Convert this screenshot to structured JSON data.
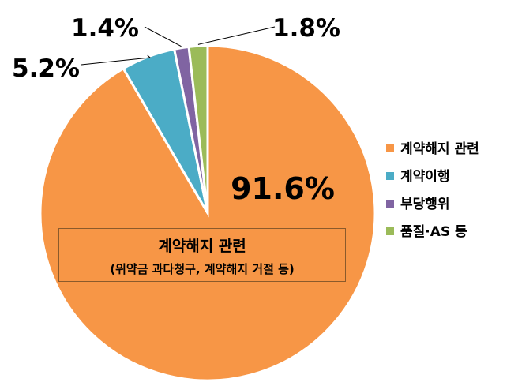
{
  "chart_data": {
    "type": "pie",
    "title": "",
    "categories": [
      "계약해지 관련",
      "계약이행",
      "부당행위",
      "품질·AS 등"
    ],
    "values": [
      91.6,
      5.2,
      1.4,
      1.8
    ],
    "data_labels": [
      "91.6%",
      "5.2%",
      "1.4%",
      "1.8%"
    ],
    "colors": [
      "#f79646",
      "#4bacc6",
      "#8064a2",
      "#9bbb59"
    ],
    "start_angle_deg": 0,
    "direction": "counterclockwise",
    "legend_position": "right",
    "annotation": {
      "title": "계약해지 관련",
      "subtitle": "(위약금 과다청구, 계약해지 거절 등)"
    }
  }
}
